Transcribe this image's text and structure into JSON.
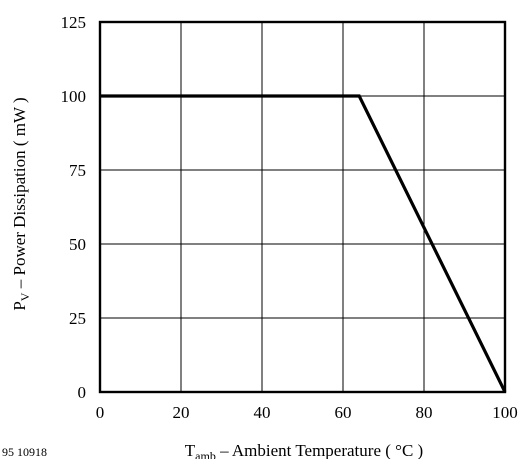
{
  "figure_number": "95 10918",
  "chart_data": {
    "type": "line",
    "xlabel": {
      "main": "T",
      "sub": "amb",
      "rest": " – Ambient Temperature ( °C )"
    },
    "ylabel": {
      "main": "P",
      "sub": "V",
      "rest": " – Power Dissipation ( mW )"
    },
    "x_ticks": [
      "0",
      "20",
      "40",
      "60",
      "80",
      "100"
    ],
    "y_ticks": [
      "0",
      "25",
      "50",
      "75",
      "100",
      "125"
    ],
    "xlim": [
      0,
      100
    ],
    "ylim": [
      0,
      125
    ],
    "grid": true,
    "series": [
      {
        "x": [
          0,
          64,
          100
        ],
        "y": [
          100,
          100,
          0
        ]
      }
    ]
  }
}
